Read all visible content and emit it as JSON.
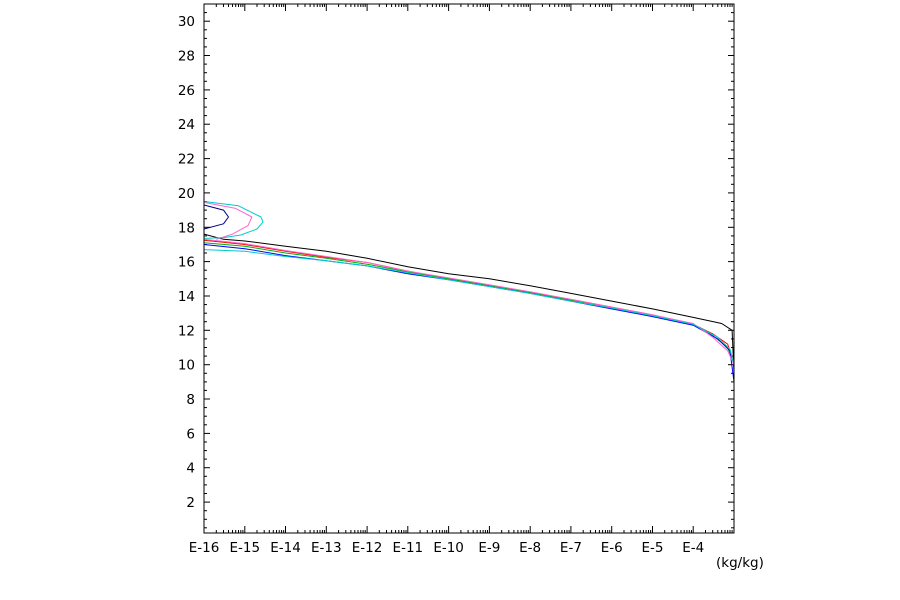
{
  "chart_data": {
    "type": "line",
    "title": "",
    "xlabel": "",
    "ylabel": "",
    "x_unit": "(kg/kg)",
    "x_scale": "log",
    "xlim": [
      1e-16,
      0.001
    ],
    "ylim": [
      0.2,
      31
    ],
    "grid": false,
    "legend": "none",
    "x_tick_labels": [
      {
        "label": "E-16",
        "exp": -16
      },
      {
        "label": "E-15",
        "exp": -15
      },
      {
        "label": "E-14",
        "exp": -14
      },
      {
        "label": "E-13",
        "exp": -13
      },
      {
        "label": "E-12",
        "exp": -12
      },
      {
        "label": "E-11",
        "exp": -11
      },
      {
        "label": "E-10",
        "exp": -10
      },
      {
        "label": "E-9",
        "exp": -9
      },
      {
        "label": "E-8",
        "exp": -8
      },
      {
        "label": "E-7",
        "exp": -7
      },
      {
        "label": "E-6",
        "exp": -6
      },
      {
        "label": "E-5",
        "exp": -5
      },
      {
        "label": "E-4",
        "exp": -4
      }
    ],
    "y_ticks": [
      2,
      4,
      6,
      8,
      10,
      12,
      14,
      16,
      18,
      20,
      22,
      24,
      26,
      28,
      30
    ],
    "series": [
      {
        "color": "#000000",
        "points": [
          [
            1e-16,
            17.6
          ],
          [
            3e-16,
            17.3
          ],
          [
            1e-15,
            17.2
          ],
          [
            1e-14,
            16.9
          ],
          [
            1e-13,
            16.6
          ],
          [
            1e-12,
            16.2
          ],
          [
            1e-11,
            15.7
          ],
          [
            1e-10,
            15.3
          ],
          [
            1e-09,
            15.0
          ],
          [
            1e-08,
            14.6
          ],
          [
            1e-07,
            14.15
          ],
          [
            1e-06,
            13.7
          ],
          [
            1e-05,
            13.25
          ],
          [
            0.0001,
            12.75
          ],
          [
            0.0005,
            12.4
          ],
          [
            0.0009,
            12.0
          ],
          [
            0.001,
            9.5
          ]
        ]
      },
      {
        "color": "#ff0000",
        "points": [
          [
            1e-16,
            17.25
          ],
          [
            1e-15,
            17.0
          ],
          [
            1e-14,
            16.6
          ],
          [
            1e-13,
            16.25
          ],
          [
            1e-12,
            15.95
          ],
          [
            1e-11,
            15.45
          ],
          [
            1e-10,
            15.0
          ],
          [
            1e-09,
            14.6
          ],
          [
            1e-08,
            14.2
          ],
          [
            1e-07,
            13.8
          ],
          [
            1e-06,
            13.35
          ],
          [
            1e-05,
            12.9
          ],
          [
            0.0001,
            12.35
          ],
          [
            0.0003,
            11.8
          ],
          [
            0.0007,
            11.2
          ],
          [
            0.001,
            10.0
          ]
        ]
      },
      {
        "color": "#00b000",
        "points": [
          [
            1e-16,
            17.1
          ],
          [
            1e-15,
            16.9
          ],
          [
            1e-14,
            16.5
          ],
          [
            1e-13,
            16.2
          ],
          [
            1e-12,
            15.85
          ],
          [
            1e-11,
            15.4
          ],
          [
            1e-10,
            15.0
          ],
          [
            1e-09,
            14.6
          ],
          [
            1e-08,
            14.2
          ],
          [
            1e-07,
            13.75
          ],
          [
            1e-06,
            13.3
          ],
          [
            1e-05,
            12.85
          ],
          [
            0.0001,
            12.35
          ],
          [
            0.0003,
            11.7
          ],
          [
            0.0007,
            11.0
          ],
          [
            0.001,
            10.0
          ]
        ]
      },
      {
        "color": "#0000ff",
        "points": [
          [
            1e-16,
            17.0
          ],
          [
            1e-15,
            16.75
          ],
          [
            1e-14,
            16.35
          ],
          [
            1e-13,
            16.05
          ],
          [
            1e-12,
            15.75
          ],
          [
            1e-11,
            15.3
          ],
          [
            1e-10,
            14.95
          ],
          [
            1e-09,
            14.55
          ],
          [
            1e-08,
            14.15
          ],
          [
            1e-07,
            13.7
          ],
          [
            1e-06,
            13.25
          ],
          [
            1e-05,
            12.8
          ],
          [
            0.0001,
            12.3
          ],
          [
            0.0004,
            11.5
          ],
          [
            0.0008,
            10.8
          ],
          [
            0.001,
            9.0
          ]
        ]
      },
      {
        "color": "#ff66cc",
        "points": [
          [
            1e-16,
            17.3
          ],
          [
            1e-15,
            17.05
          ],
          [
            1e-14,
            16.65
          ],
          [
            1e-13,
            16.3
          ],
          [
            1e-12,
            15.95
          ],
          [
            1e-11,
            15.45
          ],
          [
            1e-10,
            15.05
          ],
          [
            1e-09,
            14.65
          ],
          [
            1e-08,
            14.25
          ],
          [
            1e-07,
            13.8
          ],
          [
            1e-06,
            13.35
          ],
          [
            1e-05,
            12.9
          ],
          [
            0.0001,
            12.4
          ],
          [
            0.0003,
            11.6
          ],
          [
            0.0007,
            10.8
          ],
          [
            0.001,
            10.0
          ]
        ]
      },
      {
        "color": "#00cccc",
        "points": [
          [
            1e-16,
            16.7
          ],
          [
            1e-15,
            16.6
          ],
          [
            1e-14,
            16.3
          ],
          [
            1e-13,
            16.05
          ],
          [
            1e-12,
            15.75
          ],
          [
            1e-11,
            15.35
          ],
          [
            1e-10,
            14.95
          ],
          [
            1e-09,
            14.55
          ],
          [
            1e-08,
            14.15
          ],
          [
            1e-07,
            13.7
          ],
          [
            1e-06,
            13.3
          ],
          [
            1e-05,
            12.85
          ],
          [
            0.0001,
            12.35
          ],
          [
            0.0004,
            11.6
          ],
          [
            0.0008,
            10.9
          ],
          [
            0.001,
            10.0
          ]
        ]
      },
      {
        "color": "#000080",
        "points": [
          [
            1e-16,
            19.3
          ],
          [
            3e-16,
            19.0
          ],
          [
            4e-16,
            18.6
          ],
          [
            3e-16,
            18.2
          ],
          [
            1e-16,
            17.9
          ]
        ]
      },
      {
        "color": "#ff66cc",
        "points": [
          [
            1e-16,
            19.45
          ],
          [
            6e-16,
            19.1
          ],
          [
            1.5e-15,
            18.6
          ],
          [
            1.2e-15,
            18.1
          ],
          [
            5e-16,
            17.6
          ],
          [
            2e-16,
            17.3
          ]
        ]
      },
      {
        "color": "#00cccc",
        "points": [
          [
            1e-16,
            19.5
          ],
          [
            7e-16,
            19.25
          ],
          [
            2.5e-15,
            18.6
          ],
          [
            2.8e-15,
            18.3
          ],
          [
            2e-15,
            17.9
          ],
          [
            8e-16,
            17.55
          ],
          [
            3e-16,
            17.4
          ],
          [
            1e-16,
            17.35
          ]
        ]
      },
      {
        "color": "#00cccc",
        "points": [
          [
            1e-16,
            0.2
          ],
          [
            1e-16,
            28.3
          ]
        ]
      },
      {
        "color": "#00cccc",
        "points": [
          [
            0.001,
            0.2
          ],
          [
            0.001,
            10.0
          ]
        ]
      },
      {
        "color": "#0000ff",
        "points": [
          [
            1e-16,
            20.9
          ],
          [
            1e-16,
            23.0
          ]
        ]
      }
    ]
  }
}
